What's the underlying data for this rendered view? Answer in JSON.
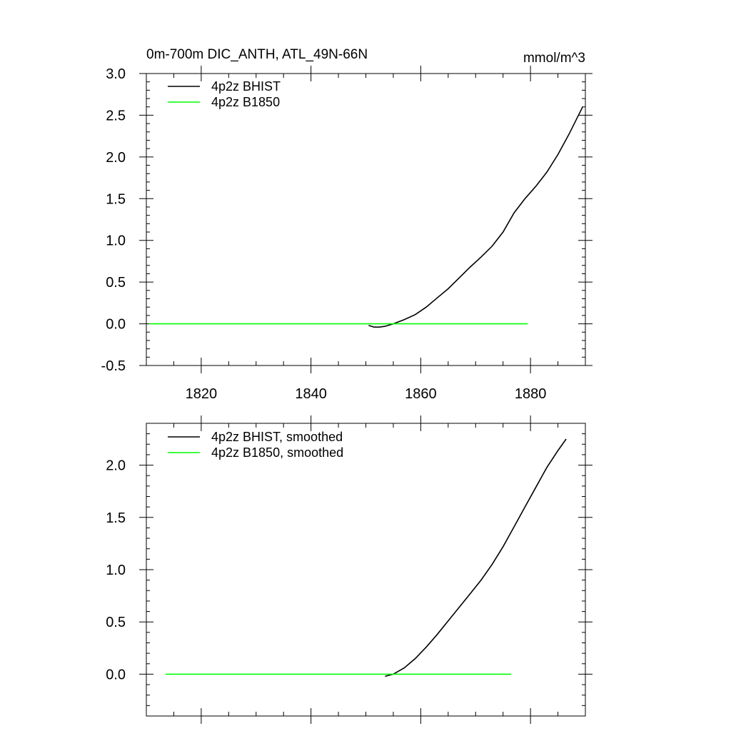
{
  "chart_data": [
    {
      "type": "line",
      "title": "0m-700m DIC_ANTH, ATL_49N-66N",
      "units": "mmol/m^3",
      "xlim": [
        1810,
        1890
      ],
      "ylim": [
        -0.5,
        3.0
      ],
      "xticks": [
        1820,
        1840,
        1860,
        1880
      ],
      "xtick_labels": [
        "1820",
        "1840",
        "1860",
        "1880"
      ],
      "yticks": [
        -0.5,
        0.0,
        0.5,
        1.0,
        1.5,
        2.0,
        2.5,
        3.0
      ],
      "ytick_labels": [
        "-0.5",
        "0.0",
        "0.5",
        "1.0",
        "1.5",
        "2.0",
        "2.5",
        "3.0"
      ],
      "legend_position": "top-left",
      "series": [
        {
          "name": "4p2z BHIST",
          "color": "#000000",
          "x": [
            1850.5,
            1851.5,
            1852.5,
            1853.5,
            1855,
            1857,
            1859,
            1861,
            1863,
            1865,
            1867,
            1869,
            1871,
            1873,
            1875,
            1877,
            1879,
            1881,
            1883,
            1885,
            1887,
            1889.5
          ],
          "y": [
            -0.02,
            -0.04,
            -0.04,
            -0.03,
            0.0,
            0.05,
            0.11,
            0.2,
            0.31,
            0.42,
            0.55,
            0.68,
            0.8,
            0.93,
            1.1,
            1.33,
            1.5,
            1.65,
            1.82,
            2.03,
            2.27,
            2.6
          ]
        },
        {
          "name": "4p2z B1850",
          "color": "#00ff00",
          "x": [
            1810.5,
            1879.5
          ],
          "y": [
            0.0,
            0.0
          ]
        }
      ]
    },
    {
      "type": "line",
      "title": "",
      "xlim": [
        1810,
        1890
      ],
      "ylim": [
        -0.4,
        2.4
      ],
      "xticks": [
        1820,
        1840,
        1860,
        1880
      ],
      "xtick_labels": [
        "",
        "",
        "",
        ""
      ],
      "yticks": [
        0.0,
        0.5,
        1.0,
        1.5,
        2.0
      ],
      "ytick_labels": [
        "0.0",
        "0.5",
        "1.0",
        "1.5",
        "2.0"
      ],
      "legend_position": "top-left",
      "series": [
        {
          "name": "4p2z BHIST, smoothed",
          "color": "#000000",
          "x": [
            1853.5,
            1855,
            1857,
            1859,
            1861,
            1863,
            1865,
            1867,
            1869,
            1871,
            1873,
            1875,
            1877,
            1879,
            1881,
            1883,
            1885,
            1886.5
          ],
          "y": [
            -0.02,
            0.0,
            0.06,
            0.15,
            0.26,
            0.38,
            0.51,
            0.64,
            0.77,
            0.9,
            1.05,
            1.22,
            1.41,
            1.6,
            1.79,
            1.98,
            2.14,
            2.25
          ]
        },
        {
          "name": "4p2z B1850, smoothed",
          "color": "#00ff00",
          "x": [
            1813.5,
            1876.5
          ],
          "y": [
            0.0,
            0.0
          ]
        }
      ]
    }
  ]
}
